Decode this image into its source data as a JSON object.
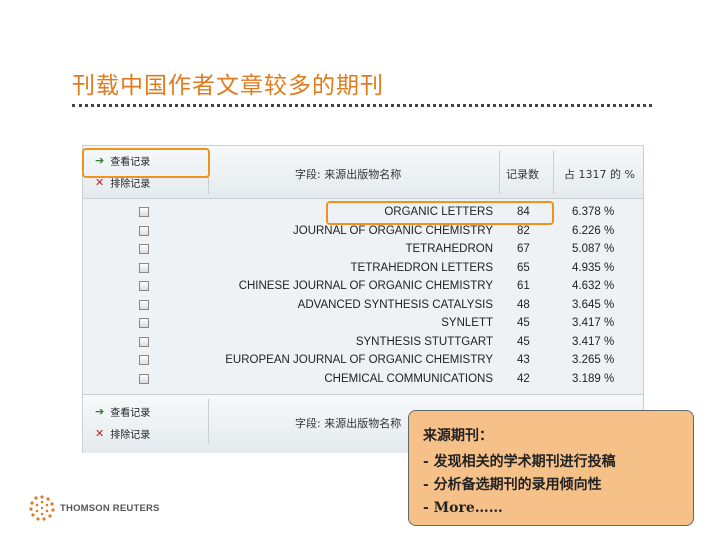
{
  "slide_title": "刊载中国作者文章较多的期刊",
  "panel": {
    "view_button": "查看记录",
    "exclude_button": "排除记录",
    "col_field": "字段: 来源出版物名称",
    "col_count": "记录数",
    "col_percent": "占 1317 的 %",
    "footer_col_field": "字段: 来源出版物名称",
    "rows": [
      {
        "name": "ORGANIC LETTERS",
        "count": "84",
        "percent": "6.378 %"
      },
      {
        "name": "JOURNAL OF ORGANIC CHEMISTRY",
        "count": "82",
        "percent": "6.226 %"
      },
      {
        "name": "TETRAHEDRON",
        "count": "67",
        "percent": "5.087 %"
      },
      {
        "name": "TETRAHEDRON LETTERS",
        "count": "65",
        "percent": "4.935 %"
      },
      {
        "name": "CHINESE JOURNAL OF ORGANIC CHEMISTRY",
        "count": "61",
        "percent": "4.632 %"
      },
      {
        "name": "ADVANCED SYNTHESIS CATALYSIS",
        "count": "48",
        "percent": "3.645 %"
      },
      {
        "name": "SYNLETT",
        "count": "45",
        "percent": "3.417 %"
      },
      {
        "name": "SYNTHESIS STUTTGART",
        "count": "45",
        "percent": "3.417 %"
      },
      {
        "name": "EUROPEAN JOURNAL OF ORGANIC CHEMISTRY",
        "count": "43",
        "percent": "3.265 %"
      },
      {
        "name": "CHEMICAL COMMUNICATIONS",
        "count": "42",
        "percent": "3.189 %"
      }
    ]
  },
  "note": {
    "title": "来源期刊：",
    "items": [
      "- 发现相关的学术期刊进行投稿",
      "- 分析备选期刊的录用倾向性",
      "- More……"
    ]
  },
  "logo": {
    "text": "THOMSON REUTERS"
  },
  "colors": {
    "accent": "#e07b1f",
    "highlight": "#f0931e",
    "note_bg": "#f6c089"
  }
}
